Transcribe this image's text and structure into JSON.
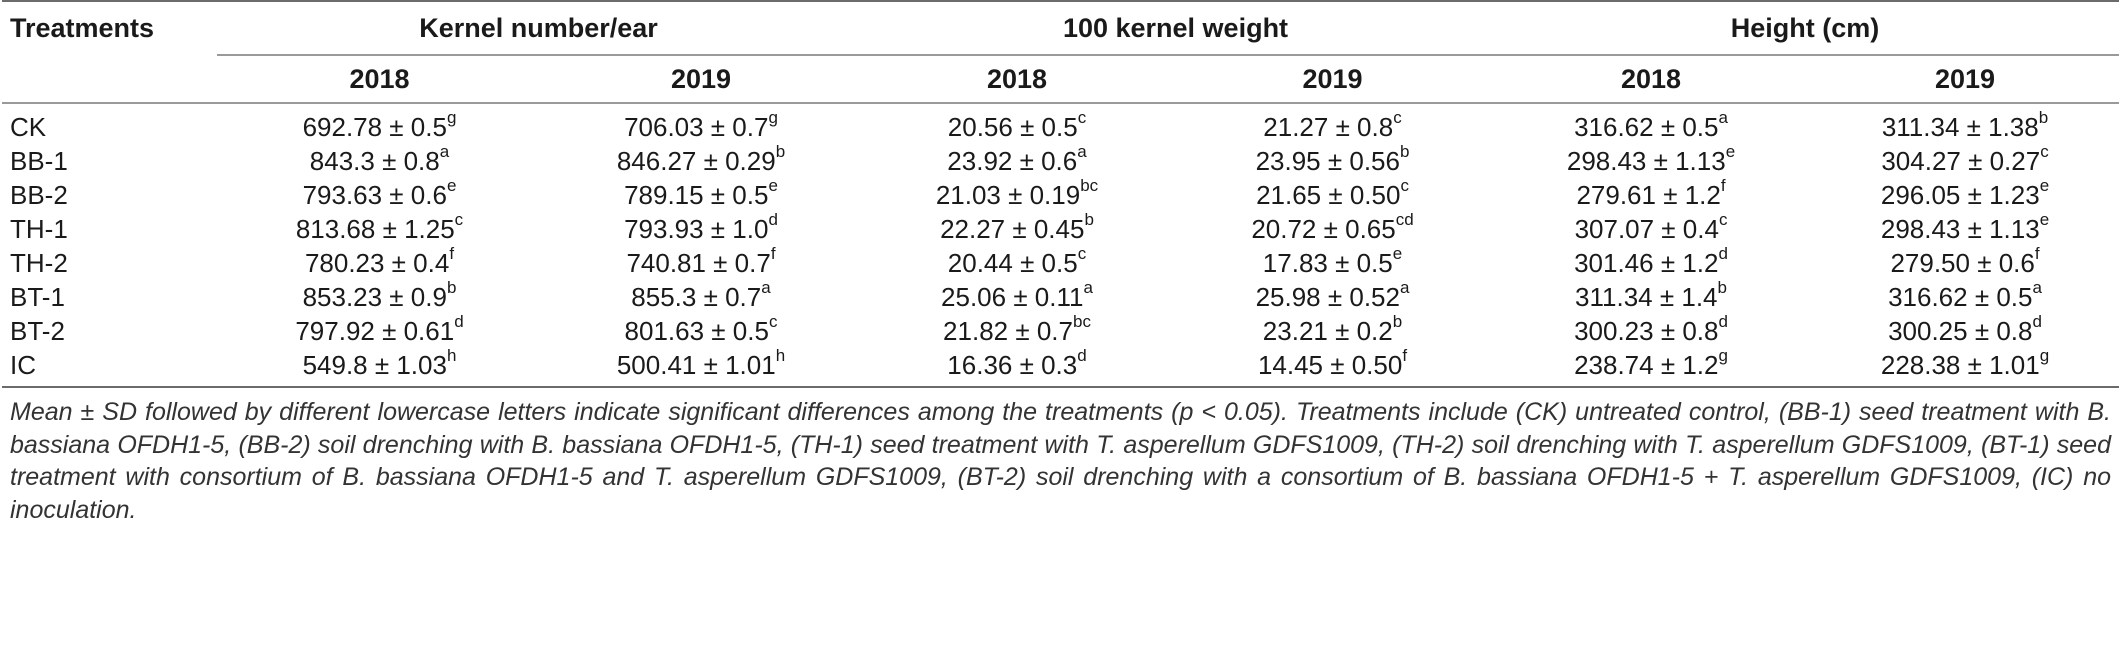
{
  "table": {
    "header": {
      "treatments": "Treatments",
      "groups": [
        "Kernel number/ear",
        "100 kernel weight",
        "Height (cm)"
      ],
      "years": [
        "2018",
        "2019",
        "2018",
        "2019",
        "2018",
        "2019"
      ]
    },
    "rows": [
      {
        "label": "CK",
        "cells": [
          {
            "v": "692.78 ± 0.5",
            "s": "g"
          },
          {
            "v": "706.03 ± 0.7",
            "s": "g"
          },
          {
            "v": "20.56 ± 0.5",
            "s": "c"
          },
          {
            "v": "21.27 ± 0.8",
            "s": "c"
          },
          {
            "v": "316.62 ± 0.5",
            "s": "a"
          },
          {
            "v": "311.34 ± 1.38",
            "s": "b"
          }
        ]
      },
      {
        "label": "BB-1",
        "cells": [
          {
            "v": "843.3 ± 0.8",
            "s": "a"
          },
          {
            "v": "846.27 ± 0.29",
            "s": "b"
          },
          {
            "v": "23.92 ± 0.6",
            "s": "a"
          },
          {
            "v": "23.95 ± 0.56",
            "s": "b"
          },
          {
            "v": "298.43 ± 1.13",
            "s": "e"
          },
          {
            "v": "304.27 ± 0.27",
            "s": "c"
          }
        ]
      },
      {
        "label": "BB-2",
        "cells": [
          {
            "v": "793.63 ± 0.6",
            "s": "e"
          },
          {
            "v": "789.15 ± 0.5",
            "s": "e"
          },
          {
            "v": "21.03 ± 0.19",
            "s": "bc"
          },
          {
            "v": "21.65 ± 0.50",
            "s": "c"
          },
          {
            "v": "279.61 ± 1.2",
            "s": "f"
          },
          {
            "v": "296.05 ± 1.23",
            "s": "e"
          }
        ]
      },
      {
        "label": "TH-1",
        "cells": [
          {
            "v": "813.68 ± 1.25",
            "s": "c"
          },
          {
            "v": "793.93 ± 1.0",
            "s": "d"
          },
          {
            "v": "22.27 ± 0.45",
            "s": "b"
          },
          {
            "v": "20.72 ± 0.65",
            "s": "cd"
          },
          {
            "v": "307.07 ± 0.4",
            "s": "c"
          },
          {
            "v": "298.43 ± 1.13",
            "s": "e"
          }
        ]
      },
      {
        "label": "TH-2",
        "cells": [
          {
            "v": "780.23 ± 0.4",
            "s": "f"
          },
          {
            "v": "740.81 ± 0.7",
            "s": "f"
          },
          {
            "v": "20.44 ± 0.5",
            "s": "c"
          },
          {
            "v": "17.83 ± 0.5",
            "s": "e"
          },
          {
            "v": "301.46 ± 1.2",
            "s": "d"
          },
          {
            "v": "279.50 ± 0.6",
            "s": "f"
          }
        ]
      },
      {
        "label": "BT-1",
        "cells": [
          {
            "v": "853.23 ± 0.9",
            "s": "b"
          },
          {
            "v": "855.3 ± 0.7",
            "s": "a"
          },
          {
            "v": "25.06 ± 0.11",
            "s": "a"
          },
          {
            "v": "25.98 ± 0.52",
            "s": "a"
          },
          {
            "v": "311.34 ± 1.4",
            "s": "b"
          },
          {
            "v": "316.62 ± 0.5",
            "s": "a"
          }
        ]
      },
      {
        "label": "BT-2",
        "cells": [
          {
            "v": "797.92 ± 0.61",
            "s": "d"
          },
          {
            "v": "801.63 ± 0.5",
            "s": "c"
          },
          {
            "v": "21.82 ± 0.7",
            "s": "bc"
          },
          {
            "v": "23.21 ± 0.2",
            "s": "b"
          },
          {
            "v": "300.23 ± 0.8",
            "s": "d"
          },
          {
            "v": "300.25 ± 0.8",
            "s": "d"
          }
        ]
      },
      {
        "label": "IC",
        "cells": [
          {
            "v": "549.8 ± 1.03",
            "s": "h"
          },
          {
            "v": "500.41 ± 1.01",
            "s": "h"
          },
          {
            "v": "16.36 ± 0.3",
            "s": "d"
          },
          {
            "v": "14.45 ± 0.50",
            "s": "f"
          },
          {
            "v": "238.74 ± 1.2",
            "s": "g"
          },
          {
            "v": "228.38 ± 1.01",
            "s": "g"
          }
        ]
      }
    ]
  },
  "footnote": "Mean ± SD followed by different lowercase letters indicate significant differences among the treatments (p < 0.05). Treatments include (CK) untreated control, (BB-1) seed treatment with B. bassiana OFDH1-5, (BB-2) soil drenching with B. bassiana OFDH1-5, (TH-1) seed treatment with T. asperellum GDFS1009, (TH-2) soil drenching with T. asperellum GDFS1009, (BT-1) seed treatment with consortium of B. bassiana OFDH1-5 and T. asperellum GDFS1009, (BT-2) soil drenching with a consortium of B. bassiana OFDH1-5 + T. asperellum GDFS1009, (IC) no inoculation."
}
